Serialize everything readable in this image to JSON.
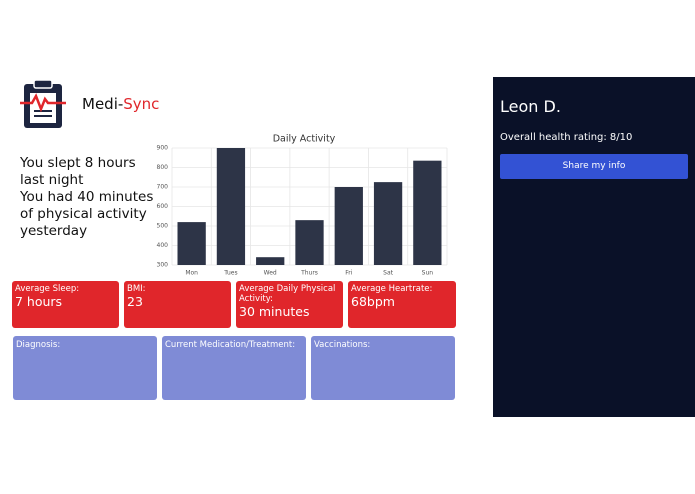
{
  "brand": {
    "name_start": "Medi-",
    "name_accent": "Sync"
  },
  "messages": [
    "You slept 8 hours last night",
    "You had 40 minutes of physical activity yesterday"
  ],
  "chart_data": {
    "type": "bar",
    "title": "Daily Activity",
    "categories": [
      "Mon",
      "Tues",
      "Wed",
      "Thurs",
      "Fri",
      "Sat",
      "Sun"
    ],
    "values": [
      520,
      900,
      340,
      530,
      700,
      725,
      835
    ],
    "color": "#2d3447",
    "ylim": [
      300,
      900
    ],
    "yticks": [
      300,
      400,
      500,
      600,
      700,
      800,
      900
    ],
    "grid": true
  },
  "stats": [
    {
      "label": "Average Sleep:",
      "value": "7 hours"
    },
    {
      "label": "BMI:",
      "value": "23"
    },
    {
      "label": "Average Daily Physical Activity:",
      "value": "30 minutes"
    },
    {
      "label": "Average Heartrate:",
      "value": "68bpm"
    }
  ],
  "records": [
    "Diagnosis:",
    "Current Medication/Treatment:",
    "Vaccinations:"
  ],
  "sidebar": {
    "name": "Leon D.",
    "rating": "Overall health rating: 8/10",
    "button": "Share my info"
  }
}
